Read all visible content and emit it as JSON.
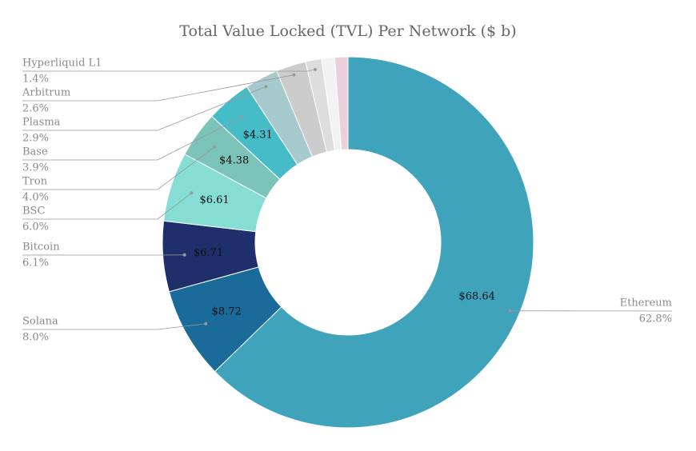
{
  "chart_data": {
    "type": "donut",
    "title": "Total Value Locked (TVL) Per Network ($ b)",
    "categories": [
      "Ethereum",
      "Solana",
      "Bitcoin",
      "BSC",
      "Tron",
      "Base",
      "Plasma",
      "Arbitrum",
      "Hyperliquid L1",
      null,
      null
    ],
    "values": [
      68.64,
      8.72,
      6.71,
      6.61,
      4.38,
      4.31,
      3.17,
      2.84,
      1.53,
      1.25,
      1.25
    ],
    "value_labels": [
      "$68.64",
      "$8.72",
      "$6.71",
      "$6.61",
      "$4.38",
      "$4.31",
      null,
      null,
      null,
      null,
      null
    ],
    "percent_labels": [
      "62.8%",
      "8.0%",
      "6.1%",
      "6.0%",
      "4.0%",
      "3.9%",
      "2.9%",
      "2.6%",
      "1.4%",
      null,
      null
    ],
    "colors": [
      "#3fa3bb",
      "#1a6a9a",
      "#1f2f6b",
      "#86ddd3",
      "#7cc3ba",
      "#46bcc9",
      "#a6c9ce",
      "#cccccc",
      "#dddddd",
      "#f2f2f2",
      "#ead0da"
    ]
  }
}
